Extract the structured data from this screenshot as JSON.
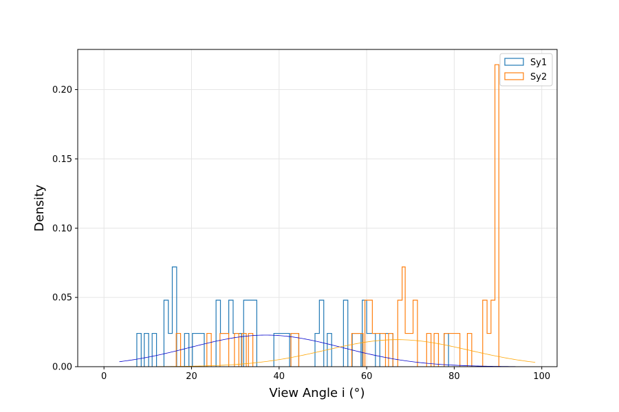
{
  "chart_data": {
    "type": "histogram",
    "xlabel": "View Angle i (°)",
    "ylabel": "Density",
    "xlim": [
      -6,
      103.5
    ],
    "ylim": [
      0,
      0.229
    ],
    "xticks": [
      0,
      20,
      40,
      60,
      80,
      100
    ],
    "yticks": [
      0.0,
      0.05,
      0.1,
      0.15,
      0.2
    ],
    "ytick_labels": [
      "0.00",
      "0.05",
      "0.10",
      "0.15",
      "0.20"
    ],
    "grid": true,
    "legend_placement": "top-right",
    "series": [
      {
        "name": "Sy1",
        "color": "#1f77b4",
        "bins": [
          {
            "x0": 7.5,
            "x1": 8.5,
            "y": 0.024
          },
          {
            "x0": 9.2,
            "x1": 10.2,
            "y": 0.024
          },
          {
            "x0": 11.0,
            "x1": 12.0,
            "y": 0.024
          },
          {
            "x0": 13.7,
            "x1": 14.7,
            "y": 0.048
          },
          {
            "x0": 14.7,
            "x1": 15.6,
            "y": 0.024
          },
          {
            "x0": 15.6,
            "x1": 16.6,
            "y": 0.072
          },
          {
            "x0": 18.4,
            "x1": 19.4,
            "y": 0.024
          },
          {
            "x0": 20.2,
            "x1": 22.9,
            "y": 0.024
          },
          {
            "x0": 25.6,
            "x1": 26.6,
            "y": 0.048
          },
          {
            "x0": 26.6,
            "x1": 28.5,
            "y": 0.024
          },
          {
            "x0": 28.5,
            "x1": 29.5,
            "y": 0.048
          },
          {
            "x0": 29.5,
            "x1": 31.4,
            "y": 0.024
          },
          {
            "x0": 31.9,
            "x1": 34.9,
            "y": 0.048
          },
          {
            "x0": 38.8,
            "x1": 42.4,
            "y": 0.024
          },
          {
            "x0": 42.7,
            "x1": 44.5,
            "y": 0.024
          },
          {
            "x0": 48.2,
            "x1": 49.2,
            "y": 0.024
          },
          {
            "x0": 49.2,
            "x1": 50.2,
            "y": 0.048
          },
          {
            "x0": 51.0,
            "x1": 52.0,
            "y": 0.024
          },
          {
            "x0": 54.7,
            "x1": 55.7,
            "y": 0.048
          },
          {
            "x0": 56.7,
            "x1": 58.7,
            "y": 0.024
          },
          {
            "x0": 59.0,
            "x1": 60.0,
            "y": 0.048
          },
          {
            "x0": 60.0,
            "x1": 62.0,
            "y": 0.024
          },
          {
            "x0": 63.0,
            "x1": 66.0,
            "y": 0.024
          },
          {
            "x0": 77.7,
            "x1": 78.7,
            "y": 0.024
          }
        ],
        "curve": {
          "type": "normal",
          "mean": 37,
          "sd": 17.4,
          "peak": 0.0228,
          "from": 3.5,
          "to": 94,
          "color": "#0000cc"
        }
      },
      {
        "name": "Sy2",
        "color": "#ff7f0e",
        "bins": [
          {
            "x0": 16.5,
            "x1": 17.5,
            "y": 0.024
          },
          {
            "x0": 23.5,
            "x1": 24.5,
            "y": 0.024
          },
          {
            "x0": 26.5,
            "x1": 28.5,
            "y": 0.024
          },
          {
            "x0": 29.8,
            "x1": 30.8,
            "y": 0.024
          },
          {
            "x0": 31.5,
            "x1": 32.5,
            "y": 0.024
          },
          {
            "x0": 33.0,
            "x1": 34.0,
            "y": 0.024
          },
          {
            "x0": 42.7,
            "x1": 44.5,
            "y": 0.024
          },
          {
            "x0": 56.6,
            "x1": 59.2,
            "y": 0.024
          },
          {
            "x0": 59.6,
            "x1": 61.3,
            "y": 0.048
          },
          {
            "x0": 61.3,
            "x1": 64.3,
            "y": 0.024
          },
          {
            "x0": 65.0,
            "x1": 66.0,
            "y": 0.024
          },
          {
            "x0": 67.1,
            "x1": 68.1,
            "y": 0.048
          },
          {
            "x0": 68.1,
            "x1": 68.8,
            "y": 0.072
          },
          {
            "x0": 68.8,
            "x1": 70.6,
            "y": 0.024
          },
          {
            "x0": 70.6,
            "x1": 71.6,
            "y": 0.048
          },
          {
            "x0": 73.7,
            "x1": 74.7,
            "y": 0.024
          },
          {
            "x0": 75.4,
            "x1": 76.4,
            "y": 0.024
          },
          {
            "x0": 77.7,
            "x1": 79.3,
            "y": 0.024
          },
          {
            "x0": 79.3,
            "x1": 80.3,
            "y": 0.024
          },
          {
            "x0": 80.3,
            "x1": 81.3,
            "y": 0.024
          },
          {
            "x0": 83.0,
            "x1": 84.0,
            "y": 0.024
          },
          {
            "x0": 86.5,
            "x1": 87.5,
            "y": 0.048
          },
          {
            "x0": 87.5,
            "x1": 88.4,
            "y": 0.024
          },
          {
            "x0": 88.4,
            "x1": 89.3,
            "y": 0.048
          },
          {
            "x0": 89.3,
            "x1": 90.2,
            "y": 0.218
          }
        ],
        "curve": {
          "type": "normal",
          "mean": 67,
          "sd": 16.5,
          "peak": 0.0195,
          "from": -1,
          "to": 98.5,
          "color": "#ffa500"
        }
      }
    ]
  }
}
